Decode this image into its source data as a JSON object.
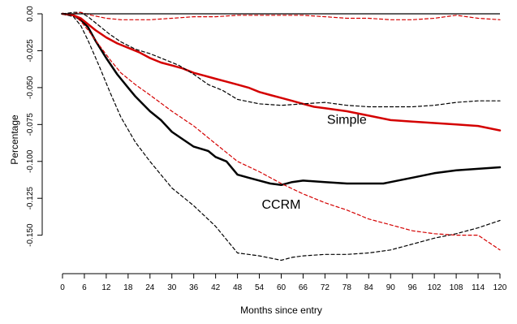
{
  "chart_data": {
    "type": "line",
    "title": "",
    "xlabel": "Months since entry",
    "ylabel": "Percentage",
    "xlim": [
      0,
      120
    ],
    "ylim": [
      -0.17,
      0.0
    ],
    "x_ticks": [
      0,
      6,
      12,
      18,
      24,
      30,
      36,
      42,
      48,
      54,
      60,
      66,
      72,
      78,
      84,
      90,
      96,
      102,
      108,
      114,
      120
    ],
    "x_tick_labels": [
      "0",
      "6",
      "12",
      "18",
      "24",
      "30",
      "36",
      "42",
      "48",
      "54",
      "60",
      "66",
      "72",
      "78",
      "84",
      "90",
      "96",
      "102",
      "108",
      "114",
      "120"
    ],
    "y_ticks": [
      0,
      -0.025,
      -0.05,
      -0.075,
      -0.1,
      -0.125,
      -0.15
    ],
    "y_tick_labels": [
      "0.00",
      "-0.025",
      "-0.050",
      "-0.075",
      "-0.100",
      "-0.125",
      "-0.150"
    ],
    "grid": false,
    "legend": "none",
    "reference_line": 0,
    "annotations": [
      {
        "text": "Simple",
        "x": 78,
        "y": -0.0745,
        "color": "#000000"
      },
      {
        "text": "CCRM",
        "x": 60,
        "y": -0.132,
        "color": "#000000"
      }
    ],
    "series": [
      {
        "color": "#000000",
        "style": "solid",
        "width": 2.5,
        "x": [
          0,
          3,
          5,
          7,
          9,
          12,
          15,
          18,
          20,
          24,
          27,
          30,
          33,
          36,
          40,
          42,
          45,
          48,
          51,
          54,
          57,
          60,
          63,
          66,
          72,
          78,
          84,
          88,
          90,
          96,
          102,
          108,
          114,
          120
        ],
        "y": [
          0,
          -0.001,
          -0.004,
          -0.009,
          -0.018,
          -0.03,
          -0.041,
          -0.05,
          -0.056,
          -0.066,
          -0.072,
          -0.08,
          -0.085,
          -0.09,
          -0.093,
          -0.097,
          -0.1,
          -0.109,
          -0.111,
          -0.113,
          -0.115,
          -0.116,
          -0.114,
          -0.113,
          -0.114,
          -0.115,
          -0.115,
          -0.115,
          -0.114,
          -0.111,
          -0.108,
          -0.106,
          -0.105,
          -0.104
        ]
      },
      {
        "color": "#d40000",
        "style": "solid",
        "width": 2.5,
        "x": [
          0,
          3,
          5,
          7,
          9,
          12,
          15,
          18,
          21,
          24,
          27,
          30,
          33,
          36,
          39,
          42,
          45,
          48,
          51,
          54,
          57,
          60,
          63,
          66,
          69,
          72,
          78,
          84,
          90,
          96,
          102,
          108,
          114,
          120
        ],
        "y": [
          0,
          -0.001,
          -0.003,
          -0.007,
          -0.011,
          -0.016,
          -0.02,
          -0.023,
          -0.026,
          -0.03,
          -0.033,
          -0.035,
          -0.037,
          -0.04,
          -0.042,
          -0.044,
          -0.046,
          -0.048,
          -0.05,
          -0.053,
          -0.055,
          -0.057,
          -0.059,
          -0.061,
          -0.063,
          -0.064,
          -0.066,
          -0.069,
          -0.072,
          -0.073,
          -0.074,
          -0.075,
          -0.076,
          -0.079
        ]
      },
      {
        "color": "#000000",
        "style": "dashed",
        "width": 1.2,
        "x": [
          0,
          3,
          5,
          7,
          10,
          13,
          16,
          20,
          24,
          30,
          36,
          42,
          48,
          54,
          60,
          63,
          66,
          72,
          78,
          84,
          90,
          96,
          102,
          108,
          114,
          120
        ],
        "y": [
          0,
          -0.002,
          -0.008,
          -0.018,
          -0.035,
          -0.053,
          -0.07,
          -0.087,
          -0.1,
          -0.118,
          -0.13,
          -0.144,
          -0.162,
          -0.164,
          -0.167,
          -0.165,
          -0.164,
          -0.163,
          -0.163,
          -0.162,
          -0.16,
          -0.156,
          -0.152,
          -0.149,
          -0.145,
          -0.14
        ]
      },
      {
        "color": "#000000",
        "style": "dashed",
        "width": 1.2,
        "x": [
          0,
          3,
          5,
          7,
          10,
          13,
          16,
          20,
          24,
          28,
          32,
          36,
          40,
          44,
          48,
          54,
          60,
          66,
          72,
          78,
          84,
          90,
          96,
          102,
          108,
          114,
          120
        ],
        "y": [
          0,
          0.001,
          0.001,
          -0.002,
          -0.008,
          -0.014,
          -0.019,
          -0.024,
          -0.027,
          -0.031,
          -0.035,
          -0.041,
          -0.048,
          -0.052,
          -0.058,
          -0.061,
          -0.062,
          -0.061,
          -0.06,
          -0.062,
          -0.063,
          -0.063,
          -0.063,
          -0.062,
          -0.06,
          -0.059,
          -0.059
        ]
      },
      {
        "color": "#d40000",
        "style": "dashed",
        "width": 1.2,
        "x": [
          0,
          3,
          5,
          7,
          10,
          13,
          16,
          20,
          24,
          30,
          36,
          42,
          48,
          54,
          60,
          66,
          72,
          78,
          84,
          90,
          96,
          102,
          108,
          114,
          120
        ],
        "y": [
          0,
          -0.001,
          -0.005,
          -0.011,
          -0.021,
          -0.031,
          -0.04,
          -0.048,
          -0.055,
          -0.066,
          -0.076,
          -0.088,
          -0.1,
          -0.107,
          -0.115,
          -0.122,
          -0.128,
          -0.133,
          -0.139,
          -0.143,
          -0.147,
          -0.149,
          -0.15,
          -0.15,
          -0.16
        ]
      },
      {
        "color": "#d40000",
        "style": "dashed",
        "width": 1.2,
        "x": [
          0,
          3,
          5,
          8,
          12,
          16,
          20,
          24,
          30,
          36,
          42,
          48,
          54,
          60,
          66,
          72,
          78,
          84,
          90,
          96,
          102,
          108,
          114,
          120
        ],
        "y": [
          0,
          0.0,
          0.001,
          -0.001,
          -0.003,
          -0.004,
          -0.004,
          -0.004,
          -0.003,
          -0.002,
          -0.002,
          -0.001,
          -0.001,
          -0.001,
          -0.001,
          -0.002,
          -0.003,
          -0.003,
          -0.004,
          -0.004,
          -0.003,
          -0.001,
          -0.003,
          -0.004
        ]
      }
    ]
  }
}
